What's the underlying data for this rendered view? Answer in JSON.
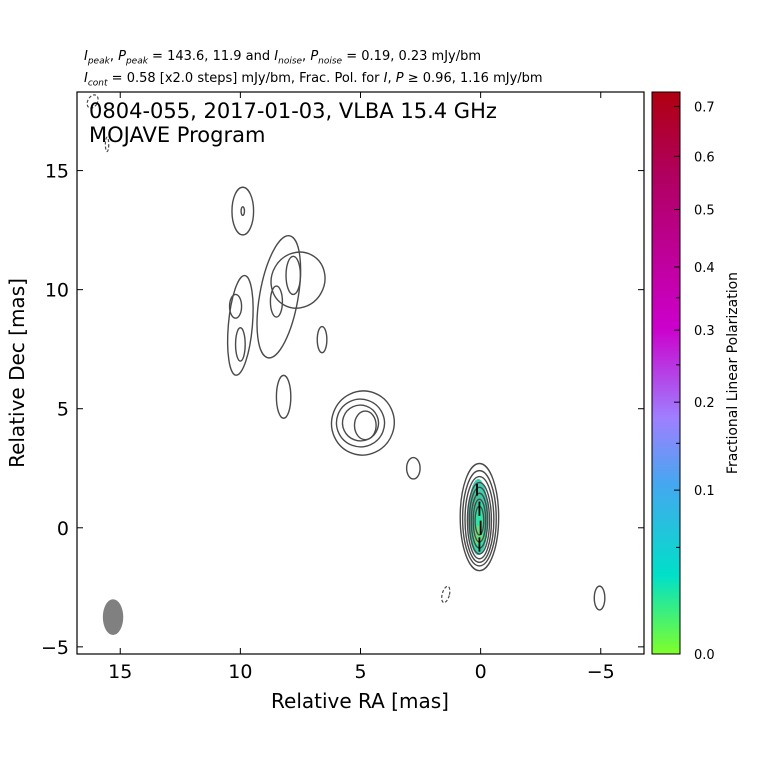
{
  "header": {
    "line1": {
      "i_peak_sym": "I",
      "i_peak_sub": "peak",
      "p_peak_sym": "P",
      "p_peak_sub": "peak",
      "peak_values": "143.6, 11.9",
      "i_noise_sym": "I",
      "i_noise_sub": "noise",
      "p_noise_sym": "P",
      "p_noise_sub": "noise",
      "noise_values": "0.19, 0.23 mJy/bm"
    },
    "line2": {
      "i_cont_sym": "I",
      "i_cont_sub": "cont",
      "cont_text": " = 0.58 [x2.0 steps] mJy/bm, Frac. Pol. for ",
      "i_sym": "I",
      "p_sym": "P",
      "threshold_text": "0.96, 1.16 mJy/bm"
    }
  },
  "chart_data": {
    "type": "contour",
    "title_line1": "0804-055, 2017-01-03, VLBA 15.4 GHz",
    "title_line2": "MOJAVE Program",
    "xlabel": "Relative RA [mas]",
    "ylabel": "Relative Dec [mas]",
    "xlim": [
      16.8,
      -6.8
    ],
    "ylim": [
      -5.3,
      18.3
    ],
    "x_ticks": [
      15,
      10,
      5,
      0,
      -5
    ],
    "x_tick_labels": [
      "15",
      "10",
      "5",
      "0",
      "−5"
    ],
    "y_ticks": [
      -5,
      0,
      5,
      10,
      15
    ],
    "y_tick_labels": [
      "−5",
      "0",
      "5",
      "10",
      "15"
    ],
    "grid": false,
    "colorbar": {
      "label": "Fractional Linear Polarization",
      "ticks": [
        0.0,
        0.1,
        0.2,
        0.3,
        0.4,
        0.5,
        0.6,
        0.7
      ],
      "tick_labels": [
        "0.0",
        "0.1",
        "0.2",
        "0.3",
        "0.4",
        "0.5",
        "0.6",
        "0.7"
      ],
      "colors": [
        "#7fff2a",
        "#00e0c8",
        "#44a8f0",
        "#9f7fff",
        "#cc00cc",
        "#b00030"
      ]
    },
    "contour_color": "#4a4a4a",
    "beam": {
      "x": 15.3,
      "y": -3.75,
      "major_mas": 1.5,
      "minor_mas": 0.6,
      "color": "#808080"
    },
    "core_contours": [
      {
        "x": 0.05,
        "y": 0.45,
        "rx": 0.8,
        "ry": 2.25
      },
      {
        "x": 0.05,
        "y": 0.4,
        "rx": 0.7,
        "ry": 2.0
      },
      {
        "x": 0.05,
        "y": 0.35,
        "rx": 0.6,
        "ry": 1.8
      },
      {
        "x": 0.05,
        "y": 0.3,
        "rx": 0.5,
        "ry": 1.6
      },
      {
        "x": 0.05,
        "y": 0.3,
        "rx": 0.42,
        "ry": 1.4
      },
      {
        "x": 0.05,
        "y": 0.3,
        "rx": 0.34,
        "ry": 1.15
      },
      {
        "x": 0.05,
        "y": 0.3,
        "rx": 0.26,
        "ry": 0.9
      },
      {
        "x": 0.05,
        "y": 0.3,
        "rx": 0.18,
        "ry": 0.6
      }
    ],
    "knot_contours": [
      {
        "x": 4.9,
        "y": 4.4,
        "rx": 1.3,
        "ry": 1.35,
        "rot": 20
      },
      {
        "x": 5.0,
        "y": 4.4,
        "rx": 1.0,
        "ry": 1.0,
        "rot": 20
      },
      {
        "x": 5.0,
        "y": 4.4,
        "rx": 0.75,
        "ry": 0.75,
        "rot": 20
      },
      {
        "x": 4.8,
        "y": 4.3,
        "rx": 0.45,
        "ry": 0.6,
        "rot": 0
      },
      {
        "x": 2.8,
        "y": 2.5,
        "rx": 0.28,
        "ry": 0.45,
        "rot": 0
      },
      {
        "x": 8.2,
        "y": 5.5,
        "rx": 0.3,
        "ry": 0.9,
        "rot": 0
      },
      {
        "x": 6.6,
        "y": 7.9,
        "rx": 0.2,
        "ry": 0.55,
        "rot": 0
      },
      {
        "x": 9.9,
        "y": 13.3,
        "rx": 0.45,
        "ry": 1.0,
        "rot": 0
      },
      {
        "x": 9.9,
        "y": 13.3,
        "rx": 0.07,
        "ry": 0.18,
        "rot": 0
      },
      {
        "x": 10.0,
        "y": 8.5,
        "rx": 0.5,
        "ry": 2.1,
        "rot": 5
      },
      {
        "x": 10.2,
        "y": 9.3,
        "rx": 0.25,
        "ry": 0.5,
        "rot": 0
      },
      {
        "x": 10.0,
        "y": 7.7,
        "rx": 0.2,
        "ry": 0.7,
        "rot": 0
      },
      {
        "x": 8.4,
        "y": 9.7,
        "rx": 0.8,
        "ry": 2.6,
        "rot": 10
      },
      {
        "x": 7.6,
        "y": 10.4,
        "rx": 1.1,
        "ry": 1.2,
        "rot": 30
      },
      {
        "x": 7.8,
        "y": 10.6,
        "rx": 0.3,
        "ry": 0.8,
        "rot": 0
      },
      {
        "x": 8.5,
        "y": 9.5,
        "rx": 0.25,
        "ry": 0.65,
        "rot": 0
      },
      {
        "x": -4.95,
        "y": -2.95,
        "rx": 0.22,
        "ry": 0.5,
        "rot": 0
      }
    ],
    "negative_contours": [
      {
        "x": 1.45,
        "y": -2.8,
        "rx": 0.15,
        "ry": 0.35,
        "rot": 15
      },
      {
        "x": 15.55,
        "y": 16.1,
        "rx": 0.07,
        "ry": 0.3,
        "rot": 0
      },
      {
        "x": 16.15,
        "y": 17.9,
        "rx": 0.2,
        "ry": 0.3,
        "rot": 30
      }
    ],
    "polarization_blob": {
      "x": 0.1,
      "y": 0.45,
      "rx": 0.42,
      "ry": 1.6,
      "colors": [
        "#3dcfb0",
        "#2ee3a4",
        "#3ec79c",
        "#6be07a"
      ]
    },
    "evpa_segments": [
      {
        "x": 0.15,
        "y": 1.6,
        "len": 0.5
      },
      {
        "x": 0.05,
        "y": 0.8,
        "len": 0.6
      },
      {
        "x": 0.0,
        "y": 0.0,
        "len": 0.6
      },
      {
        "x": 0.05,
        "y": -0.7,
        "len": 0.6
      }
    ]
  }
}
